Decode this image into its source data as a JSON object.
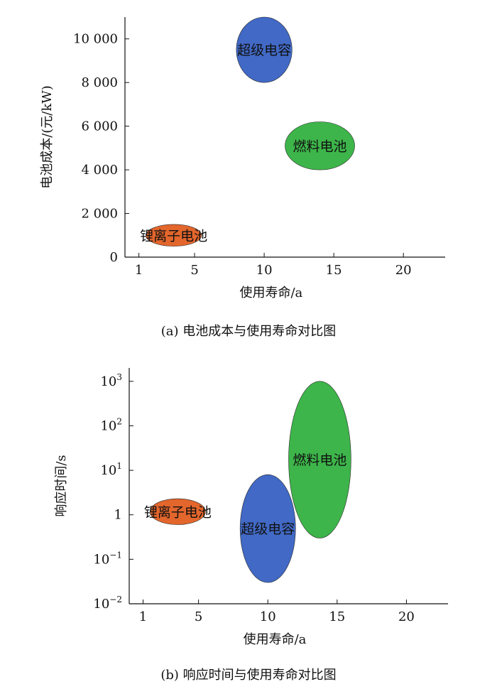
{
  "chart_data": [
    {
      "type": "scatter",
      "title": "",
      "caption": "(a) 电池成本与使用寿命对比图",
      "xlabel": "使用寿命/a",
      "ylabel": "电池成本/(元/kW)",
      "xlim": [
        0,
        23
      ],
      "ylim": [
        0,
        11000
      ],
      "x_ticks": [
        1,
        5,
        10,
        15,
        20
      ],
      "x_tick_labels": [
        "1",
        "5",
        "10",
        "15",
        "20"
      ],
      "y_ticks": [
        0,
        2000,
        4000,
        6000,
        8000,
        10000
      ],
      "y_tick_labels": [
        "0",
        "2 000",
        "4 000",
        "6 000",
        "8 000",
        "10 000"
      ],
      "grid": false,
      "series": [
        {
          "name": "超级电容",
          "x_range": [
            8,
            12
          ],
          "y_range": [
            8000,
            11000
          ],
          "color": "#4169c5"
        },
        {
          "name": "燃料电池",
          "x_range": [
            11.5,
            16.5
          ],
          "y_range": [
            4000,
            6200
          ],
          "color": "#3db54a"
        },
        {
          "name": "锂离子电池",
          "x_range": [
            1.5,
            5.5
          ],
          "y_range": [
            500,
            1500
          ],
          "color": "#e3662c"
        }
      ]
    },
    {
      "type": "scatter",
      "title": "",
      "caption": "(b) 响应时间与使用寿命对比图",
      "xlabel": "使用寿命/a",
      "ylabel": "响应时间/s",
      "y_scale": "log",
      "xlim": [
        0,
        23
      ],
      "ylim": [
        0.01,
        2000
      ],
      "x_ticks": [
        1,
        5,
        10,
        15,
        20
      ],
      "x_tick_labels": [
        "1",
        "5",
        "10",
        "15",
        "20"
      ],
      "y_ticks": [
        0.01,
        0.1,
        1,
        10,
        100,
        1000
      ],
      "y_tick_labels": [
        {
          "base": "10",
          "exp": "−2"
        },
        {
          "base": "10",
          "exp": "−1"
        },
        {
          "base": "1",
          "exp": ""
        },
        {
          "base": "10",
          "exp": "1"
        },
        {
          "base": "10",
          "exp": "2"
        },
        {
          "base": "10",
          "exp": "3"
        }
      ],
      "grid": false,
      "series": [
        {
          "name": "燃料电池",
          "x_range": [
            11.5,
            16
          ],
          "y_range": [
            0.3,
            1000
          ],
          "color": "#3db54a"
        },
        {
          "name": "超级电容",
          "x_range": [
            8,
            12
          ],
          "y_range": [
            0.03,
            8
          ],
          "color": "#4169c5"
        },
        {
          "name": "锂离子电池",
          "x_range": [
            1.5,
            5.5
          ],
          "y_range": [
            0.6,
            2.3
          ],
          "color": "#e3662c"
        }
      ]
    }
  ]
}
